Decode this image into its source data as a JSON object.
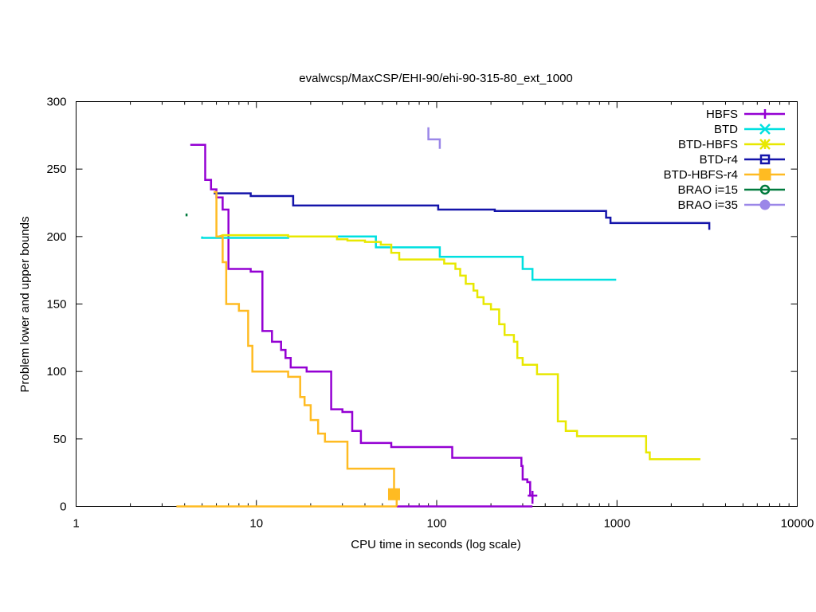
{
  "chart_data": {
    "type": "line",
    "title": "evalwcsp/MaxCSP/EHI-90/ehi-90-315-80_ext_1000",
    "xlabel": "CPU time in seconds (log scale)",
    "ylabel": "Problem lower and upper bounds",
    "xscale": "log",
    "xlim": [
      1,
      10000
    ],
    "ylim": [
      0,
      300
    ],
    "xticks": [
      1,
      10,
      100,
      1000,
      10000
    ],
    "xtick_labels": [
      "1",
      "10",
      "100",
      "1000",
      "10000"
    ],
    "yticks": [
      0,
      50,
      100,
      150,
      200,
      250,
      300
    ],
    "ytick_labels": [
      "0",
      "50",
      "100",
      "150",
      "200",
      "250",
      "300"
    ],
    "grid": false,
    "legend_position": "top-right",
    "series": [
      {
        "name": "HBFS",
        "color": "#9400d3",
        "marker": "plus",
        "marker_at": [
          [
            340,
            8
          ]
        ],
        "segments": [
          [
            [
              4.3,
              268
            ],
            [
              5.2,
              268
            ],
            [
              5.2,
              242
            ],
            [
              5.6,
              242
            ],
            [
              5.6,
              235
            ],
            [
              6.0,
              235
            ],
            [
              6.0,
              229
            ],
            [
              6.5,
              229
            ],
            [
              6.5,
              220
            ],
            [
              7.0,
              220
            ],
            [
              7.0,
              176
            ],
            [
              9.3,
              176
            ],
            [
              9.3,
              174
            ],
            [
              10.8,
              174
            ],
            [
              10.8,
              130
            ],
            [
              12.2,
              130
            ],
            [
              12.2,
              122
            ],
            [
              13.7,
              122
            ],
            [
              13.7,
              116
            ],
            [
              14.5,
              116
            ],
            [
              14.5,
              110
            ],
            [
              15.5,
              110
            ],
            [
              15.5,
              103
            ],
            [
              19.0,
              103
            ],
            [
              19.0,
              100
            ],
            [
              26.0,
              100
            ],
            [
              26.0,
              72
            ],
            [
              30.0,
              72
            ],
            [
              30.0,
              70
            ],
            [
              34.0,
              70
            ],
            [
              34.0,
              56
            ],
            [
              38.0,
              56
            ],
            [
              38.0,
              47
            ],
            [
              56.0,
              47
            ],
            [
              56.0,
              44
            ],
            [
              122.0,
              44
            ],
            [
              122.0,
              36
            ],
            [
              295.0,
              36
            ],
            [
              295.0,
              30
            ],
            [
              300.0,
              30
            ],
            [
              300.0,
              20
            ],
            [
              318.0,
              20
            ],
            [
              318.0,
              18
            ],
            [
              330.0,
              18
            ],
            [
              330.0,
              8
            ],
            [
              340.0,
              8
            ],
            [
              340.0,
              2
            ]
          ],
          [
            [
              60,
              0
            ],
            [
              340,
              0
            ]
          ]
        ]
      },
      {
        "name": "BTD",
        "color": "#00e0e0",
        "marker": "cross",
        "marker_at": [],
        "segments": [
          [
            [
              5.0,
              200
            ],
            [
              5.0,
              199
            ],
            [
              15.0,
              199
            ],
            [
              15.0,
              200
            ],
            [
              46.0,
              200
            ],
            [
              46.0,
              192
            ],
            [
              104.0,
              192
            ],
            [
              104.0,
              185
            ],
            [
              300.0,
              185
            ],
            [
              300.0,
              176
            ],
            [
              340.0,
              176
            ],
            [
              340.0,
              168
            ],
            [
              990.0,
              168
            ]
          ]
        ]
      },
      {
        "name": "BTD-HBFS",
        "color": "#e8e800",
        "marker": "star",
        "marker_at": [],
        "segments": [
          [
            [
              6.2,
              200
            ],
            [
              6.5,
              201
            ],
            [
              15.0,
              201
            ],
            [
              15.0,
              200
            ],
            [
              28.0,
              200
            ],
            [
              28.0,
              198
            ],
            [
              32.0,
              198
            ],
            [
              32.0,
              197
            ],
            [
              40.0,
              197
            ],
            [
              40.0,
              196
            ],
            [
              49.0,
              196
            ],
            [
              49.0,
              194
            ],
            [
              56.0,
              194
            ],
            [
              56.0,
              188
            ],
            [
              62.0,
              188
            ],
            [
              62.0,
              183
            ],
            [
              110.0,
              183
            ],
            [
              110.0,
              180
            ],
            [
              127.0,
              180
            ],
            [
              127.0,
              176
            ],
            [
              135.0,
              176
            ],
            [
              135.0,
              171
            ],
            [
              145.0,
              171
            ],
            [
              145.0,
              165
            ],
            [
              160.0,
              165
            ],
            [
              160.0,
              160
            ],
            [
              168.0,
              160
            ],
            [
              168.0,
              155
            ],
            [
              182.0,
              155
            ],
            [
              182.0,
              150
            ],
            [
              200.0,
              150
            ],
            [
              200.0,
              146
            ],
            [
              222.0,
              146
            ],
            [
              222.0,
              135
            ],
            [
              238.0,
              135
            ],
            [
              238.0,
              127
            ],
            [
              268.0,
              127
            ],
            [
              268.0,
              122
            ],
            [
              280.0,
              122
            ],
            [
              280.0,
              110
            ],
            [
              300.0,
              110
            ],
            [
              300.0,
              105
            ],
            [
              360.0,
              105
            ],
            [
              360.0,
              98
            ],
            [
              470.0,
              98
            ],
            [
              470.0,
              63
            ],
            [
              520.0,
              63
            ],
            [
              520.0,
              56
            ],
            [
              600.0,
              56
            ],
            [
              600.0,
              52
            ],
            [
              1450.0,
              52
            ],
            [
              1450.0,
              40
            ],
            [
              1520.0,
              40
            ],
            [
              1520.0,
              35
            ],
            [
              2900.0,
              35
            ]
          ]
        ]
      },
      {
        "name": "BTD-r4",
        "color": "#1414aa",
        "marker": "square",
        "marker_at": [],
        "segments": [
          [
            [
              5.8,
              232
            ],
            [
              9.3,
              232
            ],
            [
              9.3,
              230
            ],
            [
              16.0,
              230
            ],
            [
              16.0,
              223
            ],
            [
              102.0,
              223
            ],
            [
              102.0,
              220
            ],
            [
              210.0,
              220
            ],
            [
              210.0,
              219
            ],
            [
              870.0,
              219
            ],
            [
              870.0,
              214
            ],
            [
              920.0,
              214
            ],
            [
              920.0,
              210
            ],
            [
              3250.0,
              210
            ],
            [
              3250.0,
              205
            ]
          ]
        ]
      },
      {
        "name": "BTD-HBFS-r4",
        "color": "#ffbb22",
        "marker": "filled-square",
        "marker_at": [
          [
            58,
            9
          ]
        ],
        "segments": [
          [
            [
              5.8,
              233
            ],
            [
              6.0,
              233
            ],
            [
              6.0,
              200
            ],
            [
              6.5,
              200
            ],
            [
              6.5,
              181
            ],
            [
              6.8,
              181
            ],
            [
              6.8,
              150
            ],
            [
              8.0,
              150
            ],
            [
              8.0,
              145
            ],
            [
              9.0,
              145
            ],
            [
              9.0,
              119
            ],
            [
              9.5,
              119
            ],
            [
              9.5,
              100
            ],
            [
              15.0,
              100
            ],
            [
              15.0,
              96
            ],
            [
              17.5,
              96
            ],
            [
              17.5,
              81
            ],
            [
              18.5,
              81
            ],
            [
              18.5,
              75
            ],
            [
              20.0,
              75
            ],
            [
              20.0,
              64
            ],
            [
              22.0,
              64
            ],
            [
              22.0,
              54
            ],
            [
              24.0,
              54
            ],
            [
              24.0,
              48
            ],
            [
              32.0,
              48
            ],
            [
              32.0,
              28
            ],
            [
              58.0,
              28
            ],
            [
              58.0,
              9
            ],
            [
              60.0,
              9
            ],
            [
              60.0,
              0
            ]
          ],
          [
            [
              3.6,
              0
            ],
            [
              60.0,
              0
            ]
          ]
        ]
      },
      {
        "name": "BRAO i=15",
        "color": "#007a3d",
        "marker": "circle",
        "marker_at": [],
        "segments": [
          [
            [
              4.1,
              217
            ],
            [
              4.1,
              215
            ]
          ]
        ]
      },
      {
        "name": "BRAO i=35",
        "color": "#9b87e8",
        "marker": "filled-circle",
        "marker_at": [],
        "segments": [
          [
            [
              90.0,
              281
            ],
            [
              90.0,
              272
            ],
            [
              104.0,
              272
            ],
            [
              104.0,
              265
            ]
          ]
        ]
      }
    ]
  }
}
